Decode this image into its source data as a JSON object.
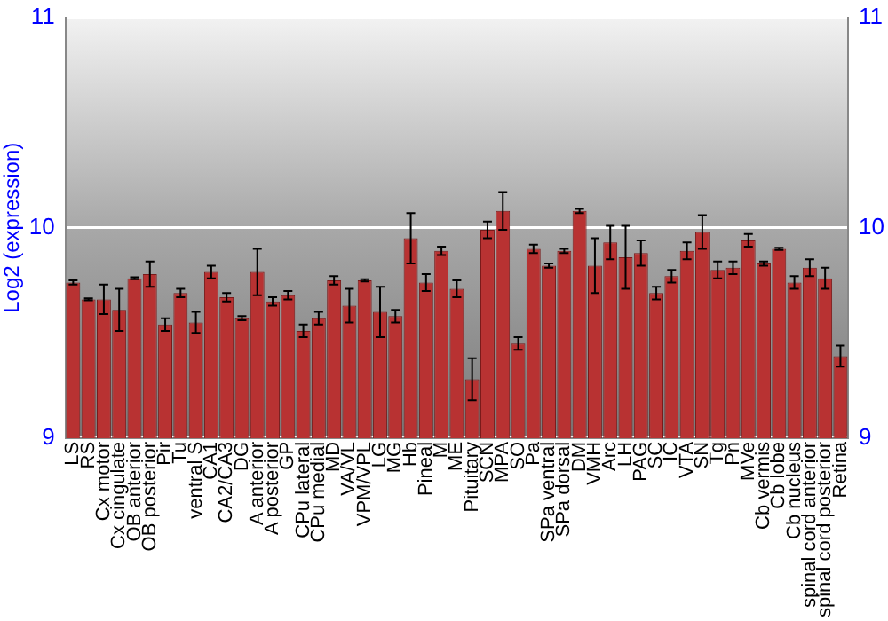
{
  "chart_data": {
    "type": "bar",
    "ylabel": "Log2 (expression)",
    "categories": [
      "LS",
      "RS",
      "Cx motor",
      "Cx cingulate",
      "OB anterior",
      "OB posterior",
      "Pir",
      "Tu",
      "ventral S",
      "CA1",
      "CA2/CA3",
      "DG",
      "A anterior",
      "A posterior",
      "GP",
      "CPu lateral",
      "CPu medial",
      "MD",
      "VA/VL",
      "VPM/VPL",
      "LG",
      "MG",
      "Hb",
      "Pineal",
      "M",
      "ME",
      "Pituitary",
      "SCN",
      "MPA",
      "SO",
      "Pa",
      "SPa ventral",
      "SPa dorsal",
      "DM",
      "VMH",
      "Arc",
      "LH",
      "PAG",
      "SC",
      "IC",
      "VTA",
      "SN",
      "Tg",
      "Pn",
      "MVe",
      "Cb vermis",
      "Cb lobe",
      "Cb nucleus",
      "spinal cord anterior",
      "spinal cord posterior",
      "Retina"
    ],
    "values": [
      9.74,
      9.66,
      9.66,
      9.61,
      9.76,
      9.78,
      9.54,
      9.69,
      9.55,
      9.79,
      9.67,
      9.57,
      9.79,
      9.65,
      9.68,
      9.51,
      9.57,
      9.75,
      9.63,
      9.75,
      9.6,
      9.58,
      9.95,
      9.74,
      9.89,
      9.71,
      9.28,
      9.99,
      10.08,
      9.45,
      9.9,
      9.82,
      9.89,
      10.08,
      9.82,
      9.93,
      9.86,
      9.88,
      9.69,
      9.77,
      9.89,
      9.98,
      9.8,
      9.81,
      9.94,
      9.83,
      9.9,
      9.74,
      9.81,
      9.76,
      9.39
    ],
    "errors": [
      0.01,
      0.005,
      0.07,
      0.1,
      0.005,
      0.06,
      0.03,
      0.02,
      0.05,
      0.03,
      0.02,
      0.01,
      0.11,
      0.02,
      0.02,
      0.03,
      0.03,
      0.02,
      0.08,
      0.005,
      0.12,
      0.03,
      0.12,
      0.04,
      0.02,
      0.04,
      0.1,
      0.04,
      0.09,
      0.03,
      0.02,
      0.01,
      0.01,
      0.01,
      0.13,
      0.08,
      0.15,
      0.06,
      0.03,
      0.03,
      0.04,
      0.08,
      0.04,
      0.03,
      0.03,
      0.01,
      0.005,
      0.03,
      0.04,
      0.05,
      0.05
    ],
    "color": "#b83232",
    "ylim": [
      9,
      11
    ],
    "yticks": [
      9,
      10,
      11
    ],
    "y2lim": [
      9,
      11
    ],
    "y2ticks": [
      9,
      10,
      11
    ],
    "grid": "y"
  }
}
